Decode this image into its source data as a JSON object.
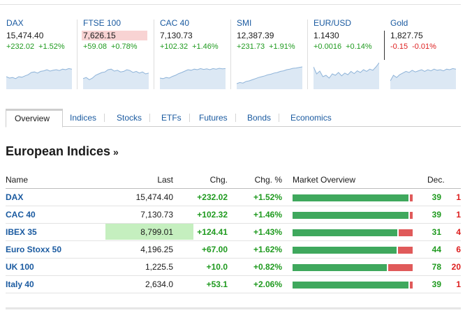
{
  "tickers": [
    {
      "name": "DAX",
      "price": "15,474.40",
      "chg": "+232.02",
      "pct": "+1.52%",
      "dir": "pos",
      "flash": "none",
      "spark": [
        0.55,
        0.6,
        0.58,
        0.62,
        0.55,
        0.57,
        0.52,
        0.48,
        0.4,
        0.38,
        0.42,
        0.36,
        0.34,
        0.3,
        0.35,
        0.32,
        0.3,
        0.33,
        0.28,
        0.3,
        0.26,
        0.28
      ]
    },
    {
      "name": "FTSE 100",
      "price": "7,626.15",
      "chg": "+59.08",
      "pct": "+0.78%",
      "dir": "pos",
      "flash": "red",
      "spark": [
        0.62,
        0.58,
        0.66,
        0.6,
        0.5,
        0.45,
        0.4,
        0.38,
        0.3,
        0.28,
        0.35,
        0.32,
        0.38,
        0.36,
        0.3,
        0.33,
        0.4,
        0.36,
        0.42,
        0.38,
        0.45,
        0.42
      ]
    },
    {
      "name": "CAC 40",
      "price": "7,130.73",
      "chg": "+102.32",
      "pct": "+1.46%",
      "dir": "pos",
      "flash": "none",
      "spark": [
        0.6,
        0.62,
        0.58,
        0.6,
        0.54,
        0.5,
        0.44,
        0.4,
        0.35,
        0.3,
        0.32,
        0.28,
        0.3,
        0.26,
        0.29,
        0.27,
        0.3,
        0.26,
        0.28,
        0.25,
        0.27,
        0.26
      ]
    },
    {
      "name": "SMI",
      "price": "12,387.39",
      "chg": "+231.73",
      "pct": "+1.91%",
      "dir": "pos",
      "flash": "none",
      "spark": [
        0.8,
        0.76,
        0.78,
        0.72,
        0.7,
        0.66,
        0.62,
        0.58,
        0.55,
        0.52,
        0.48,
        0.46,
        0.42,
        0.4,
        0.36,
        0.34,
        0.3,
        0.28,
        0.25,
        0.24,
        0.22,
        0.2
      ]
    },
    {
      "name": "EUR/USD",
      "price": "1.1430",
      "chg": "+0.0016",
      "pct": "+0.14%",
      "dir": "pos",
      "flash": "none",
      "spark": [
        0.2,
        0.45,
        0.35,
        0.55,
        0.5,
        0.6,
        0.45,
        0.5,
        0.4,
        0.52,
        0.42,
        0.48,
        0.36,
        0.44,
        0.34,
        0.4,
        0.3,
        0.36,
        0.28,
        0.32,
        0.2,
        0.05
      ]
    },
    {
      "name": "Gold",
      "price": "1,827.75",
      "chg": "-0.15",
      "pct": "-0.01%",
      "dir": "neg",
      "flash": "none",
      "spark": [
        0.7,
        0.5,
        0.58,
        0.48,
        0.42,
        0.36,
        0.4,
        0.32,
        0.38,
        0.34,
        0.3,
        0.36,
        0.3,
        0.34,
        0.28,
        0.32,
        0.3,
        0.34,
        0.28,
        0.3,
        0.26,
        0.28
      ]
    }
  ],
  "colors": {
    "spark_line": "#8fb4d9",
    "spark_fill": "#dce8f4",
    "positive": "#1f9a1f",
    "negative": "#dd1e1e",
    "bar_up": "#3fa85d",
    "bar_down": "#e05a5a",
    "link": "#1a5aa0"
  },
  "tabs": [
    "Overview",
    "Indices",
    "Stocks",
    "ETFs",
    "Futures",
    "Bonds",
    "Economics"
  ],
  "active_tab": "Overview",
  "section": {
    "title": "European Indices",
    "arrow": "»"
  },
  "table": {
    "headers": {
      "name": "Name",
      "last": "Last",
      "chg": "Chg.",
      "pct": "Chg. %",
      "overview": "Market Overview",
      "dec": "Dec."
    },
    "rows": [
      {
        "name": "DAX",
        "last": "15,474.40",
        "chg": "+232.02",
        "pct": "+1.52%",
        "up_ratio": 0.975,
        "adv": "39",
        "dec": "1",
        "flash": false
      },
      {
        "name": "CAC 40",
        "last": "7,130.73",
        "chg": "+102.32",
        "pct": "+1.46%",
        "up_ratio": 0.975,
        "adv": "39",
        "dec": "1",
        "flash": false
      },
      {
        "name": "IBEX 35",
        "last": "8,799.01",
        "chg": "+124.41",
        "pct": "+1.43%",
        "up_ratio": 0.886,
        "adv": "31",
        "dec": "4",
        "flash": true
      },
      {
        "name": "Euro Stoxx 50",
        "last": "4,196.25",
        "chg": "+67.00",
        "pct": "+1.62%",
        "up_ratio": 0.88,
        "adv": "44",
        "dec": "6",
        "flash": false
      },
      {
        "name": "UK 100",
        "last": "1,225.5",
        "chg": "+10.0",
        "pct": "+0.82%",
        "up_ratio": 0.796,
        "adv": "78",
        "dec": "20",
        "flash": false
      },
      {
        "name": "Italy 40",
        "last": "2,634.0",
        "chg": "+53.1",
        "pct": "+2.06%",
        "up_ratio": 0.975,
        "adv": "39",
        "dec": "1",
        "flash": false
      }
    ]
  }
}
